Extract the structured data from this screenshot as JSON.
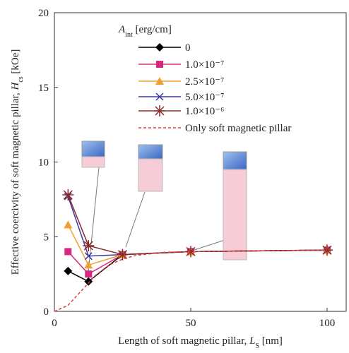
{
  "chart_data": {
    "type": "line",
    "x_label": [
      "Length of soft magnetic pillar, ",
      "L",
      "S",
      " [nm]"
    ],
    "y_label": [
      "Effective coercivity of soft magnetic pillar, ",
      "H",
      "cs",
      " [kOe]"
    ],
    "legend_title": [
      "A",
      "int",
      " [erg/cm]"
    ],
    "xlim": [
      0,
      107
    ],
    "xticks": [
      0,
      50,
      100
    ],
    "ylim": [
      0,
      20
    ],
    "yticks": [
      0,
      5,
      10,
      15,
      20
    ],
    "series": [
      {
        "name": "0",
        "color": "#000000",
        "marker": "diamond",
        "x": [
          5,
          12.5,
          25,
          50,
          100
        ],
        "values": [
          2.7,
          2.0,
          3.8,
          4.0,
          4.1
        ]
      },
      {
        "name": "1.0×10⁻⁷",
        "color": "#d6287e",
        "marker": "square",
        "x": [
          5,
          12.5,
          25,
          50,
          100
        ],
        "values": [
          4.0,
          2.5,
          3.8,
          4.0,
          4.1
        ]
      },
      {
        "name": "2.5×10⁻⁷",
        "color": "#f0a030",
        "marker": "triangle",
        "x": [
          5,
          12.5,
          25,
          50,
          100
        ],
        "values": [
          5.8,
          3.1,
          3.8,
          4.0,
          4.1
        ]
      },
      {
        "name": "5.0×10⁻⁷",
        "color": "#3a3aa0",
        "marker": "x",
        "x": [
          5,
          12.5,
          25,
          50,
          100
        ],
        "values": [
          7.7,
          3.7,
          3.8,
          4.0,
          4.1
        ]
      },
      {
        "name": "1.0×10⁻⁶",
        "color": "#8b2a2a",
        "marker": "star",
        "x": [
          5,
          12.5,
          25,
          50,
          100
        ],
        "values": [
          7.8,
          4.4,
          3.8,
          4.0,
          4.1
        ]
      },
      {
        "name": "Only soft magnetic pillar",
        "color": "#d94040",
        "dashed": true,
        "x": [
          0,
          5,
          10,
          15,
          20,
          25,
          30,
          40,
          50,
          100
        ],
        "values": [
          0,
          0.4,
          1.4,
          2.4,
          3.1,
          3.5,
          3.75,
          3.95,
          4.0,
          4.1
        ]
      }
    ]
  }
}
